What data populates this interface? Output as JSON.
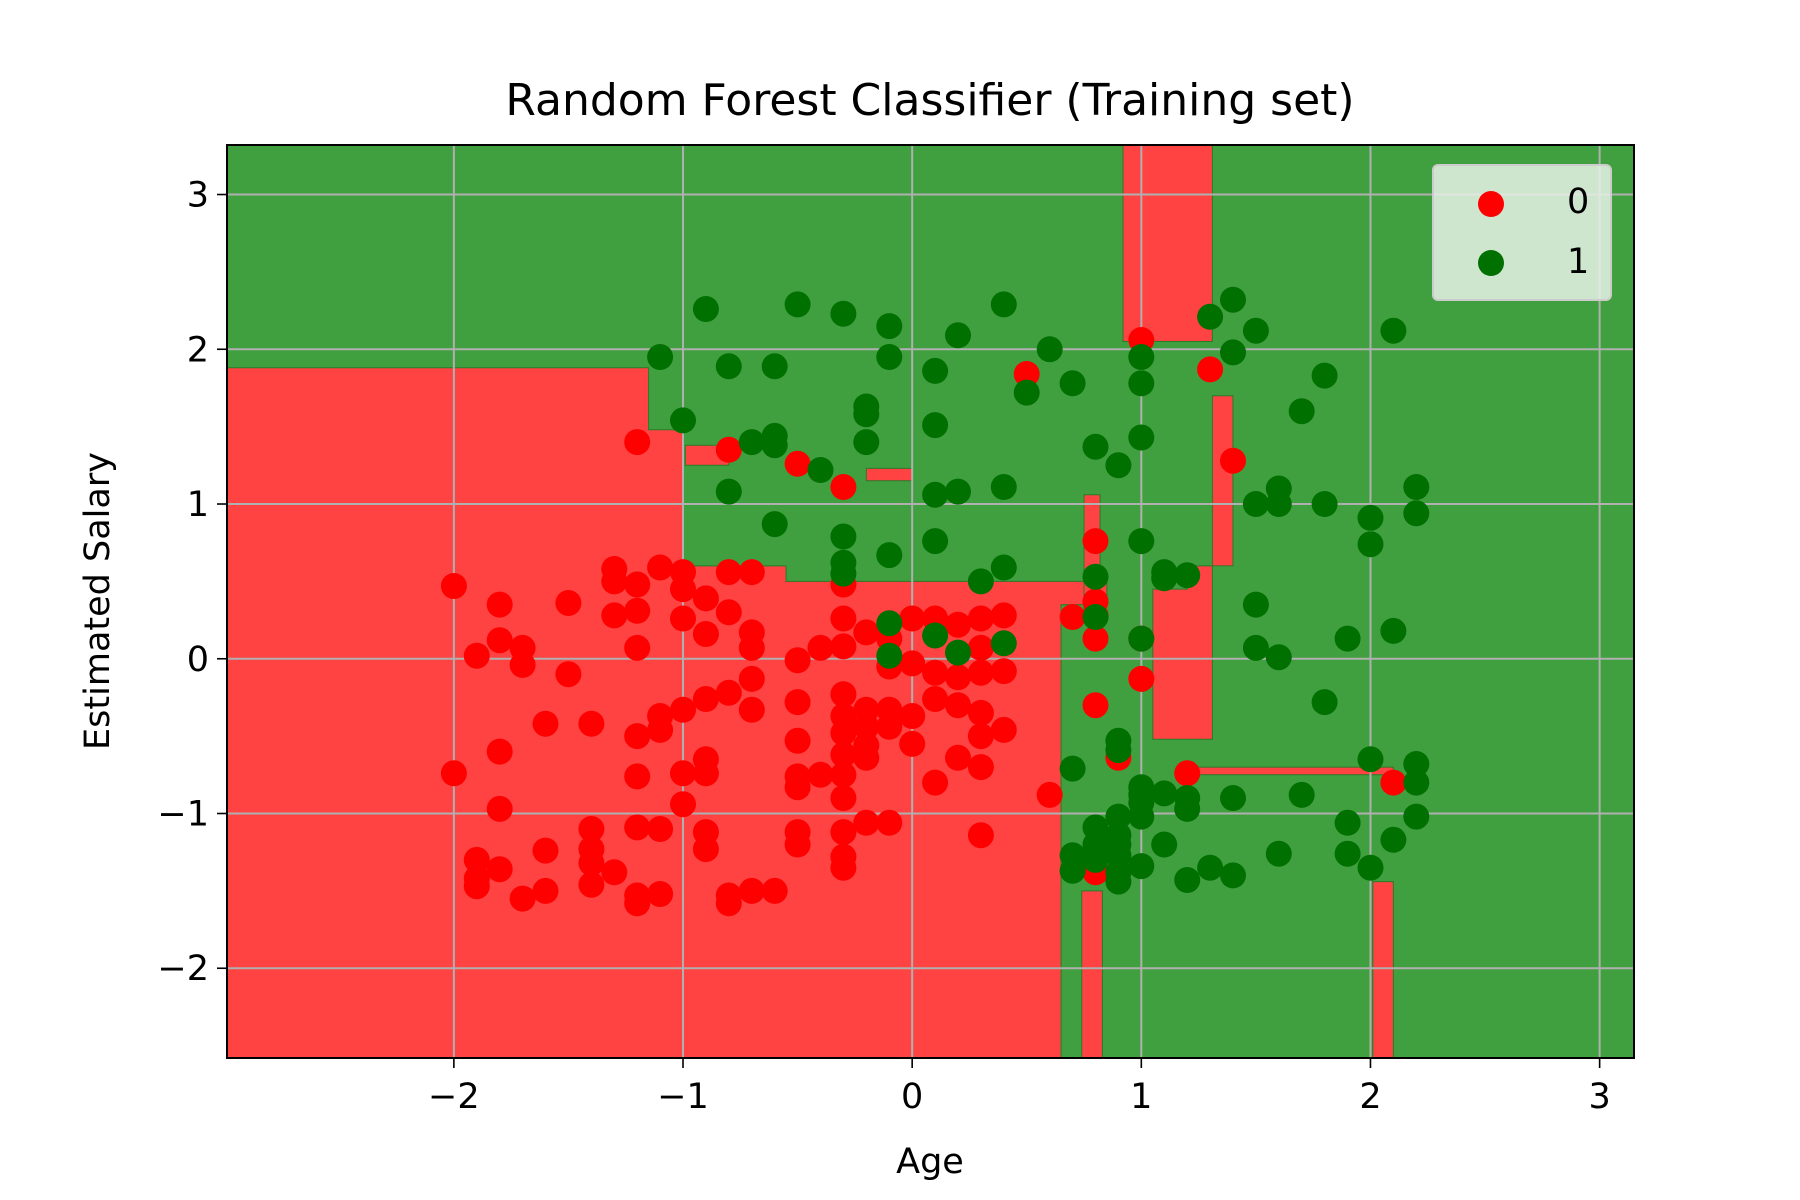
{
  "chart_data": {
    "type": "scatter",
    "title": "Random Forest Classifier (Training set)",
    "xlabel": "Age",
    "ylabel": "Estimated Salary",
    "xlim": [
      -2.99,
      3.15
    ],
    "ylim": [
      -2.58,
      3.32
    ],
    "xticks": [
      -2,
      -1,
      0,
      1,
      2,
      3
    ],
    "yticks": [
      -2,
      -1,
      0,
      1,
      2,
      3
    ],
    "xtick_labels": [
      "−2",
      "−1",
      "0",
      "1",
      "2",
      "3"
    ],
    "ytick_labels": [
      "−2",
      "−1",
      "0",
      "1",
      "2",
      "3"
    ],
    "grid": true,
    "legend_position": "top-right",
    "background_regions": {
      "class_0_color": "#ff4242",
      "class_1_color": "#40a040",
      "class_0_regions": [
        [
          [
            -2.99,
            -2.58
          ],
          [
            -2.99,
            1.88
          ],
          [
            -1.15,
            1.88
          ],
          [
            -1.15,
            1.48
          ],
          [
            -1.0,
            1.48
          ],
          [
            -1.0,
            0.6
          ],
          [
            -0.55,
            0.6
          ],
          [
            -0.55,
            0.5
          ],
          [
            0.85,
            0.5
          ],
          [
            0.85,
            0.35
          ],
          [
            0.65,
            0.35
          ],
          [
            0.65,
            -2.58
          ]
        ],
        [
          [
            0.74,
            -2.58
          ],
          [
            0.74,
            -1.5
          ],
          [
            0.83,
            -1.5
          ],
          [
            0.83,
            -2.58
          ]
        ],
        [
          [
            2.01,
            -2.58
          ],
          [
            2.01,
            -1.44
          ],
          [
            2.1,
            -1.44
          ],
          [
            2.1,
            -2.58
          ]
        ],
        [
          [
            0.92,
            3.32
          ],
          [
            0.92,
            2.05
          ],
          [
            1.31,
            2.05
          ],
          [
            1.31,
            3.32
          ]
        ],
        [
          [
            1.05,
            0.45
          ],
          [
            1.05,
            -0.52
          ],
          [
            1.31,
            -0.52
          ],
          [
            1.31,
            1.7
          ],
          [
            1.4,
            1.7
          ],
          [
            1.4,
            0.6
          ],
          [
            1.2,
            0.6
          ],
          [
            1.2,
            0.45
          ]
        ],
        [
          [
            -0.99,
            1.25
          ],
          [
            -0.99,
            1.38
          ],
          [
            -0.8,
            1.38
          ],
          [
            -0.8,
            1.25
          ]
        ],
        [
          [
            -0.2,
            1.15
          ],
          [
            -0.2,
            1.23
          ],
          [
            0.0,
            1.23
          ],
          [
            0.0,
            1.15
          ]
        ],
        [
          [
            1.18,
            -0.7
          ],
          [
            1.18,
            -0.75
          ],
          [
            2.1,
            -0.75
          ],
          [
            2.1,
            -0.7
          ]
        ],
        [
          [
            0.75,
            1.06
          ],
          [
            0.75,
            0.3
          ],
          [
            0.82,
            0.3
          ],
          [
            0.82,
            1.06
          ]
        ]
      ]
    },
    "series": [
      {
        "name": "0",
        "color": "#ff0000",
        "points": [
          [
            -2.0,
            0.47
          ],
          [
            -1.9,
            0.02
          ],
          [
            -1.8,
            0.35
          ],
          [
            -1.8,
            0.12
          ],
          [
            -1.7,
            0.07
          ],
          [
            -1.7,
            -0.04
          ],
          [
            -1.5,
            0.36
          ],
          [
            -1.5,
            -0.1
          ],
          [
            -1.3,
            0.58
          ],
          [
            -1.3,
            0.5
          ],
          [
            -1.3,
            0.28
          ],
          [
            -1.2,
            0.48
          ],
          [
            -1.2,
            0.31
          ],
          [
            -1.2,
            0.07
          ],
          [
            -1.1,
            0.59
          ],
          [
            -1.0,
            0.56
          ],
          [
            -1.0,
            0.45
          ],
          [
            -1.0,
            0.26
          ],
          [
            -0.9,
            0.39
          ],
          [
            -0.9,
            0.16
          ],
          [
            -0.8,
            0.56
          ],
          [
            -0.8,
            0.3
          ],
          [
            -0.7,
            0.56
          ],
          [
            -0.7,
            0.17
          ],
          [
            -0.7,
            0.07
          ],
          [
            -0.7,
            -0.13
          ],
          [
            -0.5,
            -0.01
          ],
          [
            -0.4,
            0.07
          ],
          [
            -0.3,
            0.48
          ],
          [
            -0.3,
            0.26
          ],
          [
            -0.3,
            0.08
          ],
          [
            -0.2,
            0.17
          ],
          [
            -0.1,
            0.13
          ],
          [
            0.0,
            0.26
          ],
          [
            0.1,
            0.26
          ],
          [
            0.2,
            0.22
          ],
          [
            0.3,
            0.26
          ],
          [
            0.4,
            0.28
          ],
          [
            -0.1,
            -0.05
          ],
          [
            0.0,
            -0.03
          ],
          [
            0.1,
            -0.09
          ],
          [
            0.2,
            -0.12
          ],
          [
            0.3,
            -0.09
          ],
          [
            0.4,
            -0.08
          ],
          [
            0.3,
            0.07
          ],
          [
            0.7,
            0.27
          ],
          [
            0.8,
            0.37
          ],
          [
            0.8,
            0.13
          ],
          [
            -2.0,
            -0.74
          ],
          [
            -1.8,
            -0.6
          ],
          [
            -1.6,
            -0.42
          ],
          [
            -1.4,
            -0.42
          ],
          [
            -1.2,
            -0.5
          ],
          [
            -1.1,
            -0.37
          ],
          [
            -1.1,
            -0.46
          ],
          [
            -1.0,
            -0.33
          ],
          [
            -0.9,
            -0.26
          ],
          [
            -0.8,
            -0.22
          ],
          [
            -0.7,
            -0.33
          ],
          [
            -0.5,
            -0.28
          ],
          [
            -0.5,
            -0.53
          ],
          [
            -0.3,
            -0.23
          ],
          [
            -0.3,
            -0.37
          ],
          [
            -0.3,
            -0.48
          ],
          [
            -0.2,
            -0.33
          ],
          [
            -0.2,
            -0.44
          ],
          [
            -0.1,
            -0.33
          ],
          [
            -0.1,
            -0.44
          ],
          [
            0.0,
            -0.37
          ],
          [
            0.0,
            -0.55
          ],
          [
            0.1,
            -0.26
          ],
          [
            0.2,
            -0.3
          ],
          [
            0.3,
            -0.35
          ],
          [
            0.3,
            -0.5
          ],
          [
            0.4,
            -0.46
          ],
          [
            -0.2,
            -0.56
          ],
          [
            -0.3,
            -0.62
          ],
          [
            0.8,
            -0.3
          ],
          [
            0.9,
            -0.64
          ],
          [
            1.0,
            -0.13
          ],
          [
            1.0,
            0.13
          ],
          [
            1.2,
            -0.74
          ],
          [
            2.1,
            -0.8
          ],
          [
            -1.2,
            -0.76
          ],
          [
            -1.0,
            -0.74
          ],
          [
            -0.9,
            -0.74
          ],
          [
            -0.9,
            -0.65
          ],
          [
            -0.5,
            -0.76
          ],
          [
            -0.5,
            -0.83
          ],
          [
            -0.4,
            -0.75
          ],
          [
            -0.3,
            -0.75
          ],
          [
            -0.2,
            -0.64
          ],
          [
            0.2,
            -0.64
          ],
          [
            0.1,
            -0.8
          ],
          [
            0.3,
            -0.7
          ],
          [
            -0.3,
            -0.9
          ],
          [
            -1.0,
            -0.94
          ],
          [
            -1.8,
            -0.97
          ],
          [
            -1.4,
            -1.1
          ],
          [
            -1.2,
            -1.09
          ],
          [
            -1.1,
            -1.1
          ],
          [
            -0.9,
            -1.12
          ],
          [
            -0.5,
            -1.12
          ],
          [
            -0.3,
            -1.12
          ],
          [
            -0.2,
            -1.06
          ],
          [
            -0.1,
            -1.06
          ],
          [
            0.3,
            -1.14
          ],
          [
            0.6,
            -0.88
          ],
          [
            -1.9,
            -1.3
          ],
          [
            -1.8,
            -1.36
          ],
          [
            -1.6,
            -1.24
          ],
          [
            -1.4,
            -1.23
          ],
          [
            -1.4,
            -1.32
          ],
          [
            -1.3,
            -1.38
          ],
          [
            -1.4,
            -1.46
          ],
          [
            -1.9,
            -1.42
          ],
          [
            -1.9,
            -1.47
          ],
          [
            -1.7,
            -1.55
          ],
          [
            -1.6,
            -1.5
          ],
          [
            -1.2,
            -1.53
          ],
          [
            -1.2,
            -1.58
          ],
          [
            -1.1,
            -1.52
          ],
          [
            -0.9,
            -1.23
          ],
          [
            -0.8,
            -1.53
          ],
          [
            -0.8,
            -1.58
          ],
          [
            -0.7,
            -1.5
          ],
          [
            -0.6,
            -1.5
          ],
          [
            -0.3,
            -1.28
          ],
          [
            -0.3,
            -1.35
          ],
          [
            -0.5,
            -1.2
          ],
          [
            0.8,
            -1.38
          ],
          [
            -1.2,
            1.4
          ],
          [
            -0.8,
            1.35
          ],
          [
            -0.5,
            1.26
          ],
          [
            -0.3,
            1.11
          ],
          [
            0.5,
            1.84
          ],
          [
            1.0,
            2.06
          ],
          [
            1.3,
            1.87
          ],
          [
            1.4,
            1.28
          ],
          [
            0.8,
            0.76
          ],
          [
            0.8,
            0.28
          ]
        ]
      },
      {
        "name": "1",
        "color": "#007000",
        "points": [
          [
            -0.9,
            2.26
          ],
          [
            -0.5,
            2.29
          ],
          [
            -0.3,
            2.23
          ],
          [
            -0.1,
            2.15
          ],
          [
            0.2,
            2.09
          ],
          [
            0.4,
            2.29
          ],
          [
            0.6,
            2.0
          ],
          [
            -1.1,
            1.95
          ],
          [
            -0.8,
            1.89
          ],
          [
            -0.6,
            1.89
          ],
          [
            -0.1,
            1.95
          ],
          [
            0.1,
            1.86
          ],
          [
            0.5,
            1.72
          ],
          [
            0.7,
            1.78
          ],
          [
            1.0,
            1.95
          ],
          [
            1.0,
            1.78
          ],
          [
            -1.0,
            1.54
          ],
          [
            -0.2,
            1.63
          ],
          [
            -0.2,
            1.58
          ],
          [
            0.1,
            1.51
          ],
          [
            -0.7,
            1.4
          ],
          [
            -0.6,
            1.38
          ],
          [
            -0.6,
            1.44
          ],
          [
            -0.4,
            1.22
          ],
          [
            -0.2,
            1.4
          ],
          [
            0.8,
            1.37
          ],
          [
            0.9,
            1.25
          ],
          [
            1.0,
            1.43
          ],
          [
            1.3,
            2.21
          ],
          [
            1.4,
            2.32
          ],
          [
            1.5,
            2.12
          ],
          [
            1.4,
            1.98
          ],
          [
            1.7,
            1.6
          ],
          [
            1.8,
            1.83
          ],
          [
            2.1,
            2.12
          ],
          [
            -0.8,
            1.08
          ],
          [
            0.1,
            1.06
          ],
          [
            0.2,
            1.08
          ],
          [
            0.4,
            1.11
          ],
          [
            -0.6,
            0.87
          ],
          [
            -0.3,
            0.79
          ],
          [
            -0.1,
            0.67
          ],
          [
            0.1,
            0.76
          ],
          [
            -0.3,
            0.62
          ],
          [
            -0.3,
            0.55
          ],
          [
            0.3,
            0.5
          ],
          [
            0.4,
            0.59
          ],
          [
            0.8,
            0.53
          ],
          [
            1.0,
            0.76
          ],
          [
            1.1,
            0.56
          ],
          [
            1.1,
            0.52
          ],
          [
            1.2,
            0.54
          ],
          [
            1.5,
            1.0
          ],
          [
            1.6,
            1.0
          ],
          [
            1.6,
            1.1
          ],
          [
            1.8,
            1.0
          ],
          [
            2.0,
            0.91
          ],
          [
            2.0,
            0.74
          ],
          [
            2.2,
            1.11
          ],
          [
            2.2,
            0.94
          ],
          [
            1.5,
            0.35
          ],
          [
            -0.1,
            0.23
          ],
          [
            0.1,
            0.15
          ],
          [
            0.4,
            0.1
          ],
          [
            0.8,
            0.27
          ],
          [
            -0.1,
            0.02
          ],
          [
            0.2,
            0.04
          ],
          [
            1.0,
            0.13
          ],
          [
            1.5,
            0.07
          ],
          [
            1.6,
            0.01
          ],
          [
            1.9,
            0.13
          ],
          [
            2.1,
            0.18
          ],
          [
            1.8,
            -0.28
          ],
          [
            0.9,
            -0.53
          ],
          [
            0.9,
            -0.59
          ],
          [
            0.7,
            -0.71
          ],
          [
            2.0,
            -0.65
          ],
          [
            2.2,
            -0.68
          ],
          [
            2.2,
            -0.8
          ],
          [
            1.0,
            -0.83
          ],
          [
            1.1,
            -0.87
          ],
          [
            1.0,
            -0.93
          ],
          [
            1.4,
            -0.9
          ],
          [
            1.7,
            -0.88
          ],
          [
            1.2,
            -0.97
          ],
          [
            0.8,
            -1.09
          ],
          [
            0.9,
            -1.02
          ],
          [
            1.0,
            -1.02
          ],
          [
            0.8,
            -1.2
          ],
          [
            0.9,
            -1.14
          ],
          [
            0.9,
            -1.2
          ],
          [
            1.1,
            -1.2
          ],
          [
            0.7,
            -1.27
          ],
          [
            0.8,
            -1.3
          ],
          [
            0.9,
            -1.27
          ],
          [
            0.7,
            -1.37
          ],
          [
            0.9,
            -1.38
          ],
          [
            0.9,
            -1.44
          ],
          [
            1.0,
            -1.34
          ],
          [
            1.2,
            -1.43
          ],
          [
            1.3,
            -1.35
          ],
          [
            1.4,
            -1.4
          ],
          [
            1.6,
            -1.26
          ],
          [
            1.9,
            -1.06
          ],
          [
            1.9,
            -1.26
          ],
          [
            2.0,
            -1.35
          ],
          [
            2.1,
            -1.17
          ],
          [
            2.2,
            -1.02
          ],
          [
            1.0,
            -0.88
          ],
          [
            0.8,
            -1.26
          ],
          [
            1.2,
            -0.9
          ]
        ]
      }
    ],
    "legend": [
      {
        "label": "0",
        "color": "#ff0000"
      },
      {
        "label": "1",
        "color": "#007000"
      }
    ]
  }
}
